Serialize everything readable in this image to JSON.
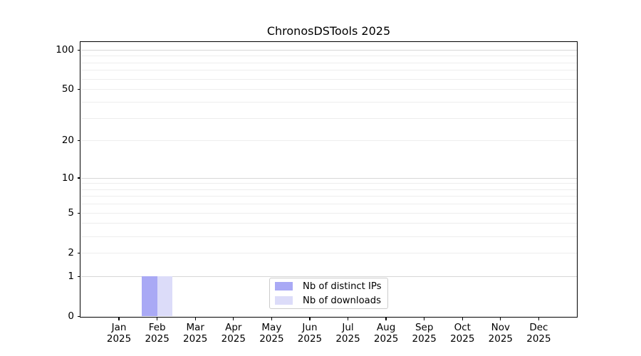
{
  "chart_data": {
    "type": "bar",
    "title": "ChronosDSTools 2025",
    "xlabel": "",
    "ylabel": "",
    "categories": [
      "Jan",
      "Feb",
      "Mar",
      "Apr",
      "May",
      "Jun",
      "Jul",
      "Aug",
      "Sep",
      "Oct",
      "Nov",
      "Dec"
    ],
    "tick_year": "2025",
    "series": [
      {
        "name": "Nb of distinct IPs",
        "color": "#a9a9f5",
        "values": [
          0,
          1,
          0,
          0,
          0,
          0,
          0,
          0,
          0,
          0,
          0,
          0
        ]
      },
      {
        "name": "Nb of downloads",
        "color": "#dcdcf9",
        "values": [
          0,
          1,
          0,
          0,
          0,
          0,
          0,
          0,
          0,
          0,
          0,
          0
        ]
      }
    ],
    "yscale": "log1p",
    "yticks": [
      0,
      1,
      2,
      5,
      10,
      20,
      50,
      100
    ],
    "minor_gridlines": [
      3,
      4,
      6,
      7,
      8,
      9,
      30,
      40,
      60,
      70,
      80,
      90
    ],
    "emphasized_gridlines": [
      1,
      10,
      100
    ],
    "ylim": [
      0,
      115
    ],
    "bar_width_fraction": 0.4,
    "grid": "on",
    "legend_position": "lower center",
    "colors": {
      "major_gridline": "#d7d7d7",
      "minor_gridline": "#ededed",
      "spine": "#000000",
      "background": "#ffffff"
    }
  }
}
